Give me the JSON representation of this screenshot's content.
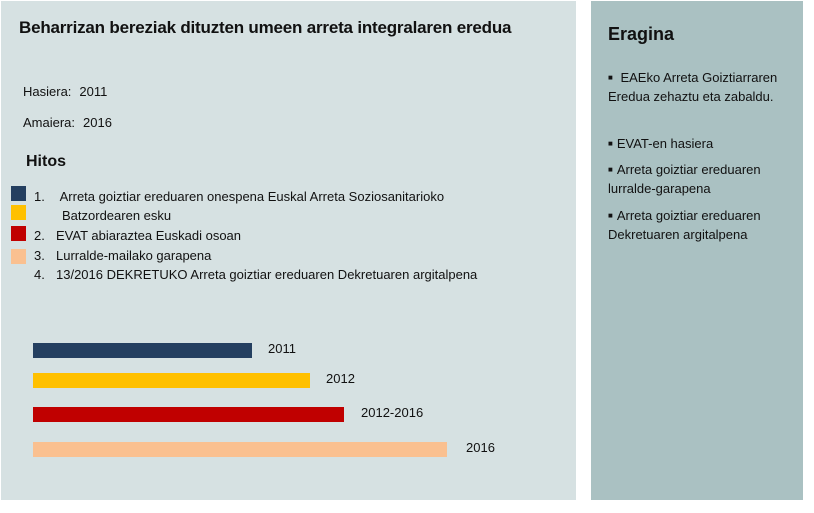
{
  "left": {
    "title": "Beharrizan bereziak dituzten  umeen arreta integralaren eredua",
    "start_label": "Hasiera:",
    "start_value": "2011",
    "end_label": "Amaiera:",
    "end_value": "2016",
    "milestones_title": "Hitos",
    "legend_colors": [
      "#243f60",
      "#ffc000",
      "#c00000",
      "#fac090"
    ],
    "milestones": [
      {
        "num": "1.",
        "text": "Arreta goiztiar ereduaren onespena Euskal  Arreta Soziosanitarioko",
        "cont": "Batzordearen esku"
      },
      {
        "num": "2.",
        "text": "EVAT abiaraztea Euskadi osoan"
      },
      {
        "num": "3.",
        "text": "Lurralde-mailako garapena"
      },
      {
        "num": "4.",
        "text": "13/2016 DEKRETUKO Arreta goiztiar ereduaren Dekretuaren argitalpena"
      }
    ]
  },
  "chart_data": {
    "type": "bar",
    "orientation": "horizontal",
    "title": "",
    "categories": [
      "2011",
      "2012",
      "2012-2016",
      "2016"
    ],
    "values": [
      2011,
      2012,
      2014,
      2016
    ],
    "relative_length": [
      0.53,
      0.67,
      0.75,
      1.0
    ],
    "colors": [
      "#243f60",
      "#ffc000",
      "#c00000",
      "#fac090"
    ],
    "data_labels": [
      "2011",
      "2012",
      "2012-2016",
      "2016"
    ],
    "xlabel": "",
    "ylabel": "",
    "grid": false,
    "legend": "none"
  },
  "right": {
    "title": "Eragina",
    "bullet": "■",
    "items": [
      "EAEko Arreta Goiztiarraren Eredua zehaztu eta zabaldu.",
      "EVAT-en hasiera",
      "Arreta goiztiar ereduaren lurralde-garapena",
      "Arreta goiztiar ereduaren Dekretuaren argitalpena"
    ]
  }
}
